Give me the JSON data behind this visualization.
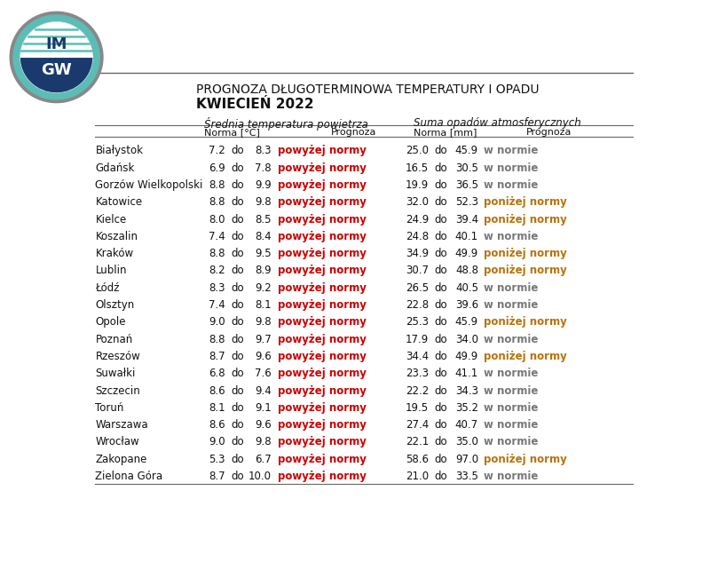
{
  "title1": "PROGNOZA DŁUGOTERMINOWA TEMPERATURY I OPADU",
  "title2": "KWIECIEŃ 2022",
  "header_temp": "Średnia temperatura powietrza",
  "header_precip": "Suma opadów atmosferycznych",
  "col_norma_temp": "Norma [°C]",
  "col_prognoza": "Prognoza",
  "col_norma_mm": "Norma [mm]",
  "cities": [
    "Białystok",
    "Gdańsk",
    "Gorzów Wielkopolski",
    "Katowice",
    "Kielce",
    "Koszalin",
    "Kraków",
    "Lublin",
    "Łódź",
    "Olsztyn",
    "Opole",
    "Poznań",
    "Rzeszów",
    "Suwałki",
    "Szczecin",
    "Toruń",
    "Warszawa",
    "Wrocław",
    "Zakopane",
    "Zielona Góra"
  ],
  "temp_low": [
    7.2,
    6.9,
    8.8,
    8.8,
    8.0,
    7.4,
    8.8,
    8.2,
    8.3,
    7.4,
    9.0,
    8.8,
    8.7,
    6.8,
    8.6,
    8.1,
    8.6,
    9.0,
    5.3,
    8.7
  ],
  "temp_high": [
    8.3,
    7.8,
    9.9,
    9.8,
    8.5,
    8.4,
    9.5,
    8.9,
    9.2,
    8.1,
    9.8,
    9.7,
    9.6,
    7.6,
    9.4,
    9.1,
    9.6,
    9.8,
    6.7,
    10.0
  ],
  "temp_prognoza": [
    "powyżej normy",
    "powyżej normy",
    "powyżej normy",
    "powyżej normy",
    "powyżej normy",
    "powyżej normy",
    "powyżej normy",
    "powyżej normy",
    "powyżej normy",
    "powyżej normy",
    "powyżej normy",
    "powyżej normy",
    "powyżej normy",
    "powyżej normy",
    "powyżej normy",
    "powyżej normy",
    "powyżej normy",
    "powyżej normy",
    "powyżej normy",
    "powyżej normy"
  ],
  "precip_low": [
    25.0,
    16.5,
    19.9,
    32.0,
    24.9,
    24.8,
    34.9,
    30.7,
    26.5,
    22.8,
    25.3,
    17.9,
    34.4,
    23.3,
    22.2,
    19.5,
    27.4,
    22.1,
    58.6,
    21.0
  ],
  "precip_high": [
    45.9,
    30.5,
    36.5,
    52.3,
    39.4,
    40.1,
    49.9,
    48.8,
    40.5,
    39.6,
    45.9,
    34.0,
    49.9,
    41.1,
    34.3,
    35.2,
    40.7,
    35.0,
    97.0,
    33.5
  ],
  "precip_prognoza": [
    "w normie",
    "w normie",
    "w normie",
    "poniżej normy",
    "poniżej normy",
    "w normie",
    "poniżej normy",
    "poniżej normy",
    "w normie",
    "w normie",
    "poniżej normy",
    "w normie",
    "poniżej normy",
    "w normie",
    "w normie",
    "w normie",
    "w normie",
    "w normie",
    "poniżej normy",
    "w normie"
  ],
  "color_red": "#cc0000",
  "color_orange": "#b8720b",
  "color_gray": "#777777",
  "color_black": "#111111",
  "bg_color": "#ffffff",
  "header_line_color": "#666666"
}
